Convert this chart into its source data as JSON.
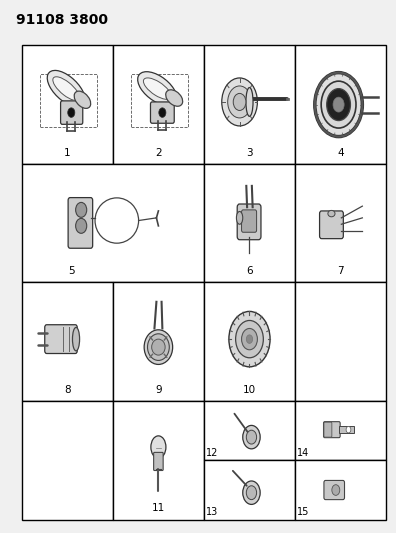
{
  "title": "91108 3800",
  "title_fontsize": 10,
  "title_fontweight": "bold",
  "bg_color": "#f0f0f0",
  "fig_width": 3.96,
  "fig_height": 5.33,
  "dpi": 100,
  "GL": 0.055,
  "GR": 0.975,
  "GT": 0.915,
  "GB": 0.025
}
